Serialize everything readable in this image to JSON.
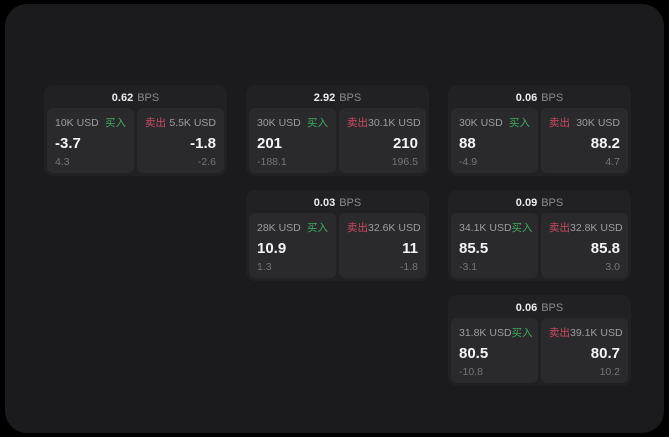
{
  "labels": {
    "bps_unit": "BPS",
    "buy": "买入",
    "sell": "卖出"
  },
  "colors": {
    "page_background": "#000000",
    "panel_background": "#1b1b1d",
    "card_background": "#212123",
    "pane_background": "#2a2a2c",
    "buy_green": "#3fab62",
    "sell_red": "#cc4a60",
    "value_white": "#f4f4f5",
    "label_gray": "#9d9da2",
    "dim_gray": "#75757a"
  },
  "cards": [
    {
      "bps": "0.62",
      "buy": {
        "amount": "10K USD",
        "price": "-3.7",
        "delta": "4.3"
      },
      "sell": {
        "amount": "5.5K USD",
        "price": "-1.8",
        "delta": "-2.6"
      }
    },
    {
      "bps": "2.92",
      "buy": {
        "amount": "30K USD",
        "price": "201",
        "delta": "-188.1"
      },
      "sell": {
        "amount": "30.1K USD",
        "price": "210",
        "delta": "196.5"
      }
    },
    {
      "bps": "0.06",
      "buy": {
        "amount": "30K USD",
        "price": "88",
        "delta": "-4.9"
      },
      "sell": {
        "amount": "30K USD",
        "price": "88.2",
        "delta": "4.7"
      }
    },
    {
      "bps": "0.03",
      "buy": {
        "amount": "28K USD",
        "price": "10.9",
        "delta": "1.3"
      },
      "sell": {
        "amount": "32.6K USD",
        "price": "11",
        "delta": "-1.8"
      }
    },
    {
      "bps": "0.09",
      "buy": {
        "amount": "34.1K USD",
        "price": "85.5",
        "delta": "-3.1"
      },
      "sell": {
        "amount": "32.8K USD",
        "price": "85.8",
        "delta": "3.0"
      }
    },
    {
      "bps": "0.06",
      "buy": {
        "amount": "31.8K USD",
        "price": "80.5",
        "delta": "-10.8"
      },
      "sell": {
        "amount": "39.1K USD",
        "price": "80.7",
        "delta": "10.2"
      }
    }
  ]
}
